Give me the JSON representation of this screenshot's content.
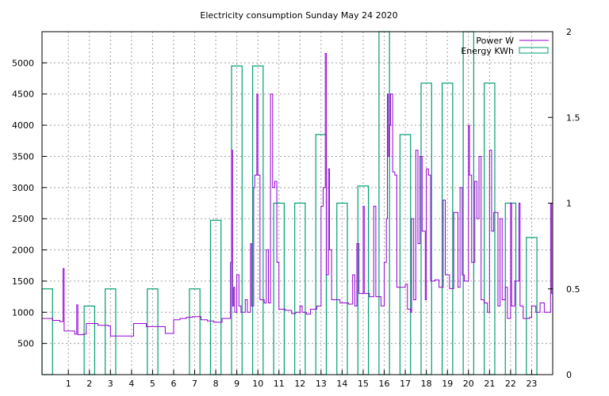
{
  "chart_data": {
    "type": "line",
    "title": "Electricity consumption Sunday May 24 2020",
    "x_range": [
      -0.25,
      24
    ],
    "x_ticks": [
      "1",
      "2",
      "3",
      "4",
      "5",
      "6",
      "7",
      "8",
      "9",
      "10",
      "11",
      "12",
      "13",
      "14",
      "15",
      "16",
      "17",
      "18",
      "19",
      "20",
      "21",
      "22",
      "23"
    ],
    "y_left_range": [
      0,
      5500
    ],
    "y_left_ticks": [
      "500",
      "1000",
      "1500",
      "2000",
      "2500",
      "3000",
      "3500",
      "4000",
      "4500",
      "5000"
    ],
    "y_right_range": [
      0,
      2
    ],
    "y_right_ticks": [
      "0",
      "0.5",
      "1",
      "1.5",
      "2"
    ],
    "grid": true,
    "legend_placement": "top-right",
    "colors": {
      "power": "#9400d3",
      "energy": "#009e73"
    },
    "series": [
      {
        "name": "Power W",
        "axis": "left",
        "style": "steps",
        "points": [
          [
            -0.25,
            900
          ],
          [
            0.25,
            870
          ],
          [
            0.6,
            850
          ],
          [
            0.75,
            1700
          ],
          [
            0.8,
            700
          ],
          [
            1.0,
            700
          ],
          [
            1.3,
            650
          ],
          [
            1.4,
            1120
          ],
          [
            1.45,
            640
          ],
          [
            1.7,
            650
          ],
          [
            1.85,
            820
          ],
          [
            2.4,
            790
          ],
          [
            2.9,
            780
          ],
          [
            3.0,
            620
          ],
          [
            3.5,
            620
          ],
          [
            4.0,
            620
          ],
          [
            4.1,
            820
          ],
          [
            4.6,
            820
          ],
          [
            4.7,
            770
          ],
          [
            5.5,
            770
          ],
          [
            5.6,
            660
          ],
          [
            5.9,
            660
          ],
          [
            6.0,
            880
          ],
          [
            6.3,
            900
          ],
          [
            6.6,
            920
          ],
          [
            6.9,
            930
          ],
          [
            7.3,
            880
          ],
          [
            7.6,
            860
          ],
          [
            7.9,
            840
          ],
          [
            8.3,
            900
          ],
          [
            8.7,
            1800
          ],
          [
            8.75,
            3600
          ],
          [
            8.8,
            1100
          ],
          [
            8.85,
            1400
          ],
          [
            8.9,
            1000
          ],
          [
            9.0,
            1600
          ],
          [
            9.1,
            1100
          ],
          [
            9.2,
            1000
          ],
          [
            9.4,
            1200
          ],
          [
            9.5,
            1000
          ],
          [
            9.65,
            2100
          ],
          [
            9.7,
            1100
          ],
          [
            9.8,
            3000
          ],
          [
            9.85,
            3200
          ],
          [
            9.95,
            4500
          ],
          [
            10.0,
            3200
          ],
          [
            10.1,
            1200
          ],
          [
            10.3,
            1150
          ],
          [
            10.4,
            2000
          ],
          [
            10.5,
            1150
          ],
          [
            10.6,
            4500
          ],
          [
            10.65,
            4500
          ],
          [
            10.7,
            3000
          ],
          [
            10.8,
            3100
          ],
          [
            10.9,
            1800
          ],
          [
            11.0,
            1050
          ],
          [
            11.3,
            1030
          ],
          [
            11.6,
            980
          ],
          [
            11.8,
            1000
          ],
          [
            12.0,
            1100
          ],
          [
            12.1,
            1000
          ],
          [
            12.3,
            970
          ],
          [
            12.5,
            1050
          ],
          [
            12.8,
            1100
          ],
          [
            13.0,
            2700
          ],
          [
            13.1,
            3000
          ],
          [
            13.2,
            5150
          ],
          [
            13.25,
            1600
          ],
          [
            13.35,
            3300
          ],
          [
            13.4,
            2000
          ],
          [
            13.5,
            1200
          ],
          [
            13.9,
            1150
          ],
          [
            14.3,
            1130
          ],
          [
            14.5,
            1600
          ],
          [
            14.6,
            1100
          ],
          [
            14.7,
            2100
          ],
          [
            14.8,
            1300
          ],
          [
            15.0,
            2700
          ],
          [
            15.05,
            1300
          ],
          [
            15.3,
            1250
          ],
          [
            15.5,
            2700
          ],
          [
            15.6,
            1250
          ],
          [
            15.85,
            1100
          ],
          [
            16.0,
            1800
          ],
          [
            16.1,
            2500
          ],
          [
            16.15,
            4500
          ],
          [
            16.2,
            3500
          ],
          [
            16.25,
            4000
          ],
          [
            16.3,
            4500
          ],
          [
            16.4,
            3250
          ],
          [
            16.5,
            3200
          ],
          [
            16.6,
            1400
          ],
          [
            17.0,
            1450
          ],
          [
            17.1,
            1050
          ],
          [
            17.25,
            1000
          ],
          [
            17.3,
            2500
          ],
          [
            17.4,
            1200
          ],
          [
            17.5,
            3600
          ],
          [
            17.6,
            2100
          ],
          [
            17.7,
            3500
          ],
          [
            17.8,
            2300
          ],
          [
            17.95,
            1200
          ],
          [
            18.0,
            3300
          ],
          [
            18.1,
            3200
          ],
          [
            18.2,
            1500
          ],
          [
            18.4,
            1520
          ],
          [
            18.6,
            1400
          ],
          [
            18.8,
            2800
          ],
          [
            18.9,
            1600
          ],
          [
            19.1,
            1380
          ],
          [
            19.3,
            2600
          ],
          [
            19.5,
            1400
          ],
          [
            19.6,
            3000
          ],
          [
            19.7,
            1600
          ],
          [
            19.8,
            1500
          ],
          [
            20.0,
            4000
          ],
          [
            20.05,
            3200
          ],
          [
            20.15,
            1800
          ],
          [
            20.3,
            3100
          ],
          [
            20.4,
            2500
          ],
          [
            20.5,
            3500
          ],
          [
            20.6,
            1200
          ],
          [
            20.75,
            1150
          ],
          [
            20.9,
            1000
          ],
          [
            21.0,
            3600
          ],
          [
            21.1,
            2300
          ],
          [
            21.2,
            2600
          ],
          [
            21.4,
            1100
          ],
          [
            21.5,
            2500
          ],
          [
            21.6,
            1200
          ],
          [
            21.75,
            1400
          ],
          [
            21.85,
            900
          ],
          [
            22.0,
            2750
          ],
          [
            22.05,
            1100
          ],
          [
            22.2,
            1500
          ],
          [
            22.4,
            2750
          ],
          [
            22.45,
            1100
          ],
          [
            22.6,
            900
          ],
          [
            22.9,
            920
          ],
          [
            23.0,
            1100
          ],
          [
            23.2,
            1000
          ],
          [
            23.4,
            1150
          ],
          [
            23.6,
            1000
          ],
          [
            23.9,
            2750
          ],
          [
            23.95,
            1300
          ],
          [
            24.0,
            1900
          ]
        ]
      },
      {
        "name": "Energy KWh",
        "axis": "right",
        "style": "boxes",
        "bars": [
          [
            -0.25,
            0.5
          ],
          [
            0.25,
            0.0
          ],
          [
            0.75,
            0.0
          ],
          [
            1.75,
            0.4
          ],
          [
            2.25,
            0.0
          ],
          [
            2.75,
            0.5
          ],
          [
            3.25,
            0.0
          ],
          [
            4.75,
            0.5
          ],
          [
            5.25,
            0.0
          ],
          [
            6.75,
            0.5
          ],
          [
            7.25,
            0.0
          ],
          [
            7.75,
            0.9
          ],
          [
            8.25,
            0.0
          ],
          [
            8.75,
            1.8
          ],
          [
            9.25,
            0.0
          ],
          [
            9.75,
            1.8
          ],
          [
            10.25,
            0.0
          ],
          [
            10.75,
            1.0
          ],
          [
            11.25,
            0.0
          ],
          [
            11.75,
            1.0
          ],
          [
            12.25,
            0.0
          ],
          [
            12.75,
            1.4
          ],
          [
            13.25,
            0.0
          ],
          [
            13.75,
            1.0
          ],
          [
            14.25,
            0.0
          ],
          [
            14.75,
            1.1
          ],
          [
            15.25,
            0.0
          ],
          [
            15.75,
            2.0
          ],
          [
            16.25,
            0.0
          ],
          [
            16.75,
            1.4
          ],
          [
            17.25,
            0.0
          ],
          [
            17.75,
            1.7
          ],
          [
            18.25,
            0.0
          ],
          [
            18.75,
            1.7
          ],
          [
            19.25,
            0.0
          ],
          [
            19.75,
            2.0
          ],
          [
            20.25,
            0.0
          ],
          [
            20.75,
            1.7
          ],
          [
            21.25,
            0.0
          ],
          [
            21.75,
            1.0
          ],
          [
            22.25,
            0.0
          ],
          [
            22.75,
            0.8
          ],
          [
            23.25,
            0.0
          ]
        ]
      }
    ]
  }
}
